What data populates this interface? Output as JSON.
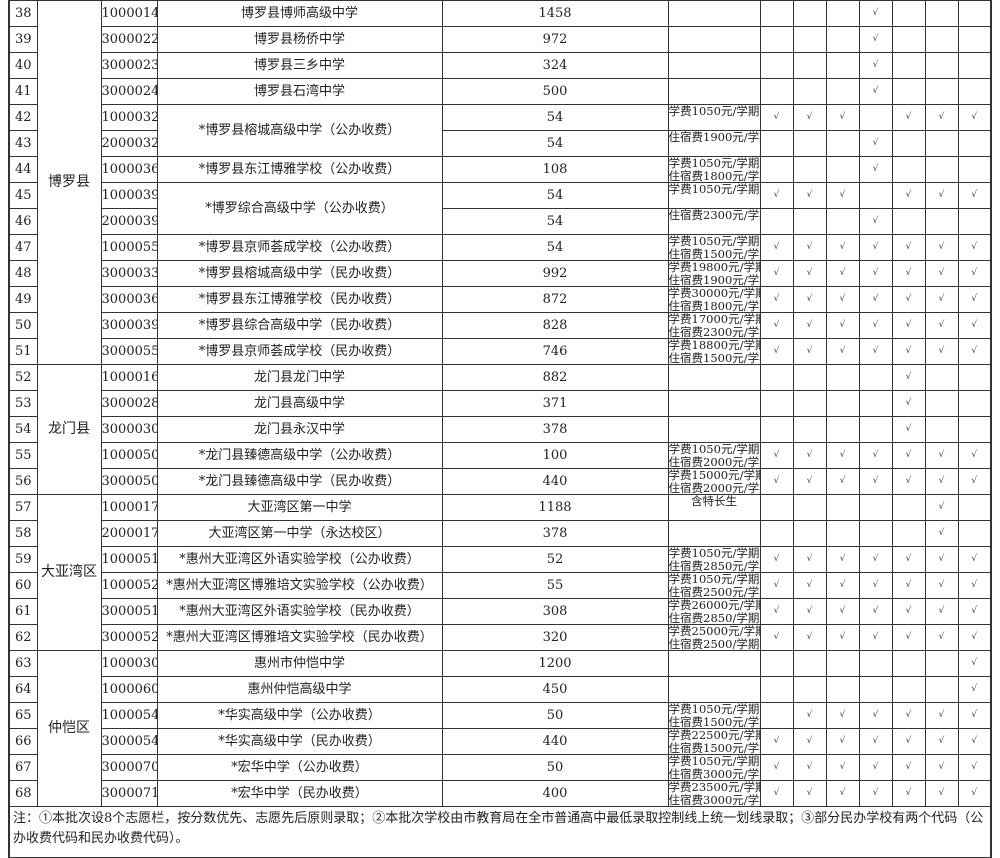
{
  "check_mark": "√",
  "groups": [
    {
      "district": "博罗县",
      "rows": [
        {
          "no": "38",
          "code": "1000014",
          "name": "博罗县博师高级中学",
          "count": "1458",
          "remark": [],
          "checks": [
            0,
            0,
            0,
            1,
            0,
            0,
            0
          ]
        },
        {
          "no": "39",
          "code": "3000022",
          "name": "博罗县杨侨中学",
          "count": "972",
          "remark": [],
          "checks": [
            0,
            0,
            0,
            1,
            0,
            0,
            0
          ]
        },
        {
          "no": "40",
          "code": "3000023",
          "name": "博罗县三乡中学",
          "count": "324",
          "remark": [],
          "checks": [
            0,
            0,
            0,
            1,
            0,
            0,
            0
          ]
        },
        {
          "no": "41",
          "code": "3000024",
          "name": "博罗县石湾中学",
          "count": "500",
          "remark": [],
          "checks": [
            0,
            0,
            0,
            1,
            0,
            0,
            0
          ]
        },
        {
          "no": "42",
          "code": "1000032",
          "name": "*博罗县榕城高级中学（公办收费）",
          "name_rows": 2,
          "count": "54",
          "remark": [
            "学费1050元/学期"
          ],
          "checks": [
            1,
            1,
            1,
            0,
            1,
            1,
            1
          ]
        },
        {
          "no": "43",
          "code": "2000032",
          "name": null,
          "count": "54",
          "remark": [
            "住宿费1900元/学期"
          ],
          "checks": [
            0,
            0,
            0,
            1,
            0,
            0,
            0
          ]
        },
        {
          "no": "44",
          "code": "1000036",
          "name": "*博罗县东江博雅学校（公办收费）",
          "count": "108",
          "remark": [
            "学费1050元/学期",
            "住宿费1800元/学期"
          ],
          "checks": [
            0,
            0,
            0,
            1,
            0,
            0,
            0
          ]
        },
        {
          "no": "45",
          "code": "1000039",
          "name": "*博罗综合高级中学（公办收费）",
          "name_rows": 2,
          "count": "54",
          "remark": [
            "学费1050元/学期"
          ],
          "checks": [
            1,
            1,
            1,
            0,
            1,
            1,
            1
          ]
        },
        {
          "no": "46",
          "code": "2000039",
          "name": null,
          "count": "54",
          "remark": [
            "住宿费2300元/学期"
          ],
          "checks": [
            0,
            0,
            0,
            1,
            0,
            0,
            0
          ]
        },
        {
          "no": "47",
          "code": "1000055",
          "name": "*博罗县京师荟成学校（公办收费）",
          "count": "54",
          "remark": [
            "学费1050元/学期",
            "住宿费1500元/学期"
          ],
          "checks": [
            1,
            1,
            1,
            1,
            1,
            1,
            1
          ]
        },
        {
          "no": "48",
          "code": "3000033",
          "name": "*博罗县榕城高级中学（民办收费）",
          "count": "992",
          "remark": [
            "学费19800元/学期",
            "住宿费1900元/学期"
          ],
          "checks": [
            1,
            1,
            1,
            1,
            1,
            1,
            1
          ]
        },
        {
          "no": "49",
          "code": "3000036",
          "name": "*博罗县东江博雅学校（民办收费）",
          "count": "872",
          "remark": [
            "学费30000元/学期",
            "住宿费1800元/学期"
          ],
          "checks": [
            1,
            1,
            1,
            1,
            1,
            1,
            1
          ]
        },
        {
          "no": "50",
          "code": "3000039",
          "name": "*博罗县综合高级中学（民办收费）",
          "count": "828",
          "remark": [
            "学费17000元/学期",
            "住宿费2300元/学期"
          ],
          "checks": [
            1,
            1,
            1,
            1,
            1,
            1,
            1
          ]
        },
        {
          "no": "51",
          "code": "3000055",
          "name": "*博罗县京师荟成学校（民办收费）",
          "count": "746",
          "remark": [
            "学费18800元/学期",
            "住宿费1500元/学期"
          ],
          "checks": [
            1,
            1,
            1,
            1,
            1,
            1,
            1
          ]
        }
      ]
    },
    {
      "district": "龙门县",
      "rows": [
        {
          "no": "52",
          "code": "1000016",
          "name": "龙门县龙门中学",
          "count": "882",
          "remark": [],
          "checks": [
            0,
            0,
            0,
            0,
            1,
            0,
            0
          ]
        },
        {
          "no": "53",
          "code": "3000028",
          "name": "龙门县高级中学",
          "count": "371",
          "remark": [],
          "checks": [
            0,
            0,
            0,
            0,
            1,
            0,
            0
          ]
        },
        {
          "no": "54",
          "code": "3000030",
          "name": "龙门县永汉中学",
          "count": "378",
          "remark": [],
          "checks": [
            0,
            0,
            0,
            0,
            1,
            0,
            0
          ]
        },
        {
          "no": "55",
          "code": "1000050",
          "name": "*龙门县臻德高级中学（公办收费）",
          "count": "100",
          "remark": [
            "学费1050元/学期",
            "住宿费2000元/学期"
          ],
          "checks": [
            1,
            1,
            1,
            1,
            1,
            1,
            1
          ]
        },
        {
          "no": "56",
          "code": "3000050",
          "name": "*龙门县臻德高级中学（民办收费）",
          "count": "440",
          "remark": [
            "学费15000元/学期",
            "住宿费2000元/学期"
          ],
          "checks": [
            1,
            1,
            1,
            1,
            1,
            1,
            1
          ]
        }
      ]
    },
    {
      "district": "大亚湾区",
      "rows": [
        {
          "no": "57",
          "code": "1000017",
          "name": "大亚湾区第一中学",
          "count": "1188",
          "remark": [
            "含特长生"
          ],
          "checks": [
            0,
            0,
            0,
            0,
            0,
            1,
            0
          ]
        },
        {
          "no": "58",
          "code": "2000017",
          "name": "大亚湾区第一中学（永达校区）",
          "count": "378",
          "remark": [],
          "checks": [
            0,
            0,
            0,
            0,
            0,
            1,
            0
          ]
        },
        {
          "no": "59",
          "code": "1000051",
          "name": "*惠州大亚湾区外语实验学校（公办收费）",
          "count": "52",
          "remark": [
            "学费1050元/学期",
            "住宿费2850元/学期"
          ],
          "checks": [
            1,
            1,
            1,
            1,
            1,
            1,
            1
          ]
        },
        {
          "no": "60",
          "code": "1000052",
          "name": "*惠州大亚湾区博雅培文实验学校（公办收费）",
          "count": "55",
          "remark": [
            "学费1050元/学期",
            "住宿费2500元/学期"
          ],
          "checks": [
            1,
            1,
            1,
            1,
            1,
            1,
            1
          ]
        },
        {
          "no": "61",
          "code": "3000051",
          "name": "*惠州大亚湾区外语实验学校（民办收费）",
          "count": "308",
          "remark": [
            "学费26000元/学期",
            "住宿费2850/学期"
          ],
          "checks": [
            1,
            1,
            1,
            1,
            1,
            1,
            1
          ]
        },
        {
          "no": "62",
          "code": "3000052",
          "name": "*惠州大亚湾区博雅培文实验学校（民办收费）",
          "count": "320",
          "remark": [
            "学费25000元/学期",
            "住宿费2500/学期"
          ],
          "checks": [
            1,
            1,
            1,
            1,
            1,
            1,
            1
          ]
        }
      ]
    },
    {
      "district": "仲恺区",
      "rows": [
        {
          "no": "63",
          "code": "1000030",
          "name": "惠州市仲恺中学",
          "count": "1200",
          "remark": [],
          "checks": [
            0,
            0,
            0,
            0,
            0,
            0,
            1
          ]
        },
        {
          "no": "64",
          "code": "1000060",
          "name": "惠州仲恺高级中学",
          "count": "450",
          "remark": [],
          "checks": [
            0,
            0,
            0,
            0,
            0,
            0,
            1
          ]
        },
        {
          "no": "65",
          "code": "1000054",
          "name": "*华实高级中学（公办收费）",
          "count": "50",
          "remark": [
            "学费1050元/学期",
            "住宿费1500元/学期"
          ],
          "checks": [
            0,
            1,
            1,
            1,
            1,
            1,
            1
          ]
        },
        {
          "no": "66",
          "code": "3000054",
          "name": "*华实高级中学（民办收费）",
          "count": "440",
          "remark": [
            "学费22500元/学期",
            "住宿费1500元/学期"
          ],
          "checks": [
            1,
            1,
            1,
            1,
            1,
            1,
            1
          ]
        },
        {
          "no": "67",
          "code": "3000070",
          "name": "*宏华中学（公办收费）",
          "count": "50",
          "remark": [
            "学费1050元/学期",
            "住宿费3000元/学期"
          ],
          "checks": [
            1,
            1,
            1,
            1,
            1,
            1,
            1
          ]
        },
        {
          "no": "68",
          "code": "3000071",
          "name": "*宏华中学（民办收费）",
          "count": "400",
          "remark": [
            "学费23500元/学期",
            "住宿费3000元/学期"
          ],
          "checks": [
            1,
            1,
            1,
            1,
            1,
            1,
            1
          ]
        }
      ]
    }
  ],
  "note": "注：①本批次设8个志愿栏，按分数优先、志愿先后原则录取；②本批次学校由市教育局在全市普通高中最低录取控制线上统一划线录取；③部分民办学校有两个代码（公办收费代码和民办收费代码）。"
}
